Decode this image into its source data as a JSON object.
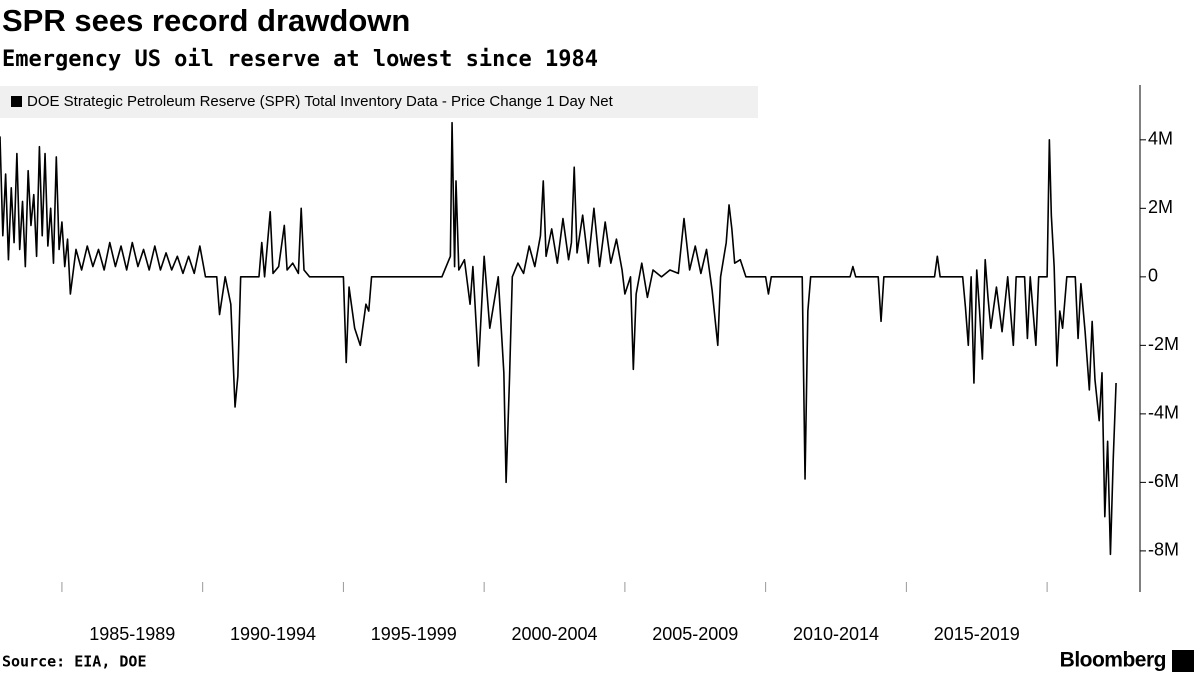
{
  "chart_data": {
    "type": "line",
    "title": "SPR sees record drawdown",
    "subtitle": "Emergency US oil reserve at lowest since 1984",
    "source": "Source: EIA, DOE",
    "brand": "Bloomberg",
    "xlim": [
      1982.8,
      2023.3
    ],
    "ylim": [
      -9.2,
      5.6
    ],
    "xticks": [
      1985,
      1990,
      1995,
      2000,
      2005,
      2010,
      2015,
      2020
    ],
    "x_period_labels": [
      {
        "value": 1987.5,
        "label": "1985-1989"
      },
      {
        "value": 1992.5,
        "label": "1990-1994"
      },
      {
        "value": 1997.5,
        "label": "1995-1999"
      },
      {
        "value": 2002.5,
        "label": "2000-2004"
      },
      {
        "value": 2007.5,
        "label": "2005-2009"
      },
      {
        "value": 2012.5,
        "label": "2010-2014"
      },
      {
        "value": 2017.5,
        "label": "2015-2019"
      }
    ],
    "yticks": [
      {
        "value": 4,
        "label": "4M"
      },
      {
        "value": 2,
        "label": "2M"
      },
      0,
      {
        "value": -2,
        "label": "-2M"
      },
      {
        "value": -4,
        "label": "-4M"
      },
      {
        "value": -6,
        "label": "-6M"
      },
      {
        "value": -8,
        "label": "-8M"
      }
    ],
    "grid": false,
    "x": [
      1982.8,
      1982.9,
      1983.0,
      1983.1,
      1983.2,
      1983.3,
      1983.4,
      1983.5,
      1983.6,
      1983.7,
      1983.8,
      1983.9,
      1984.0,
      1984.1,
      1984.2,
      1984.3,
      1984.4,
      1984.5,
      1984.6,
      1984.7,
      1984.8,
      1984.9,
      1985.0,
      1985.1,
      1985.2,
      1985.3,
      1985.5,
      1985.7,
      1985.9,
      1986.1,
      1986.3,
      1986.5,
      1986.7,
      1986.9,
      1987.1,
      1987.3,
      1987.5,
      1987.7,
      1987.9,
      1988.1,
      1988.3,
      1988.5,
      1988.7,
      1988.9,
      1989.1,
      1989.3,
      1989.5,
      1989.7,
      1989.9,
      1990.1,
      1990.5,
      1990.6,
      1990.8,
      1991.0,
      1991.15,
      1991.25,
      1991.35,
      1992.0,
      1992.1,
      1992.2,
      1992.4,
      1992.5,
      1992.7,
      1992.9,
      1993.0,
      1993.2,
      1993.4,
      1993.5,
      1993.6,
      1993.8,
      1995.0,
      1995.1,
      1995.2,
      1995.4,
      1995.6,
      1995.8,
      1995.9,
      1996.0,
      1998.5,
      1998.8,
      1998.86,
      1998.95,
      1999.0,
      1999.1,
      1999.3,
      1999.5,
      1999.6,
      1999.8,
      2000.0,
      2000.2,
      2000.5,
      2000.7,
      2000.78,
      2000.9,
      2001.0,
      2001.2,
      2001.4,
      2001.6,
      2001.8,
      2002.0,
      2002.1,
      2002.2,
      2002.4,
      2002.6,
      2002.8,
      2003.0,
      2003.1,
      2003.2,
      2003.3,
      2003.5,
      2003.7,
      2003.9,
      2004.1,
      2004.3,
      2004.5,
      2004.7,
      2004.9,
      2005.0,
      2005.2,
      2005.3,
      2005.4,
      2005.6,
      2005.8,
      2006.0,
      2006.3,
      2006.6,
      2006.9,
      2007.1,
      2007.3,
      2007.5,
      2007.7,
      2007.9,
      2008.1,
      2008.3,
      2008.4,
      2008.6,
      2008.7,
      2008.8,
      2008.9,
      2009.1,
      2009.3,
      2010.0,
      2010.1,
      2010.2,
      2011.3,
      2011.4,
      2011.5,
      2011.6,
      2013.0,
      2013.1,
      2013.2,
      2014.0,
      2014.1,
      2014.2,
      2016.0,
      2016.1,
      2016.2,
      2017.0,
      2017.1,
      2017.2,
      2017.3,
      2017.4,
      2017.5,
      2017.6,
      2017.7,
      2017.8,
      2017.9,
      2018.0,
      2018.2,
      2018.4,
      2018.6,
      2018.8,
      2018.9,
      2019.2,
      2019.3,
      2019.4,
      2019.6,
      2019.7,
      2020.0,
      2020.08,
      2020.15,
      2020.25,
      2020.35,
      2020.45,
      2020.55,
      2020.7,
      2021.0,
      2021.1,
      2021.2,
      2021.35,
      2021.5,
      2021.6,
      2021.7,
      2021.85,
      2021.95,
      2022.05,
      2022.15,
      2022.25,
      2022.35,
      2022.45
    ],
    "series": [
      {
        "name": "DOE Strategic Petroleum Reserve (SPR) Total Inventory Data - Price Change 1 Day Net",
        "color": "#000000",
        "values": [
          4.1,
          1.2,
          3.0,
          0.5,
          2.6,
          1.0,
          3.6,
          0.8,
          2.2,
          0.3,
          3.1,
          1.5,
          2.4,
          0.6,
          3.8,
          1.2,
          3.6,
          0.9,
          2.0,
          0.4,
          3.5,
          0.8,
          1.6,
          0.3,
          1.1,
          -0.5,
          0.8,
          0.2,
          0.9,
          0.3,
          0.8,
          0.2,
          1.0,
          0.3,
          0.9,
          0.2,
          1.0,
          0.3,
          0.8,
          0.2,
          0.9,
          0.2,
          0.7,
          0.2,
          0.6,
          0.1,
          0.6,
          0.1,
          0.9,
          0,
          0,
          -1.1,
          0,
          -0.8,
          -3.8,
          -2.9,
          0,
          0,
          1.0,
          0,
          1.9,
          0.1,
          0.3,
          1.5,
          0.2,
          0.4,
          0.1,
          2.0,
          0.2,
          0,
          0,
          -2.5,
          -0.3,
          -1.5,
          -2.0,
          -0.8,
          -1.0,
          0,
          0,
          0.6,
          4.5,
          0.3,
          2.8,
          0.2,
          0.5,
          -0.8,
          0.3,
          -2.6,
          0.6,
          -1.5,
          0,
          -2.8,
          -6.0,
          -3.0,
          0,
          0.4,
          0.1,
          0.9,
          0.3,
          1.2,
          2.8,
          0.6,
          1.4,
          0.4,
          1.7,
          0.5,
          1.0,
          3.2,
          0.7,
          1.8,
          0.4,
          2.0,
          0.3,
          1.6,
          0.4,
          1.1,
          0.2,
          -0.5,
          0,
          -2.7,
          -0.5,
          0.4,
          -0.6,
          0.2,
          0,
          0.2,
          0.1,
          1.7,
          0.2,
          0.9,
          0.1,
          0.8,
          -0.4,
          -2.0,
          0,
          1.0,
          2.1,
          1.4,
          0.4,
          0.5,
          0,
          0,
          -0.5,
          0,
          0,
          -5.9,
          -1.0,
          0,
          0,
          0.3,
          0,
          0,
          -1.3,
          0,
          0,
          0.6,
          0,
          0,
          -0.9,
          -2.0,
          0,
          -3.1,
          0.2,
          -1.0,
          -2.4,
          0.5,
          -0.6,
          -1.5,
          -0.3,
          -1.6,
          0,
          -2.0,
          0,
          0,
          -1.8,
          0,
          -2.0,
          0,
          0,
          4.0,
          1.8,
          0.3,
          -2.6,
          -1.0,
          -1.5,
          0,
          0,
          -1.8,
          -0.2,
          -1.6,
          -3.3,
          -1.3,
          -3.0,
          -4.2,
          -2.8,
          -7.0,
          -4.8,
          -8.1,
          -5.3,
          -3.1
        ]
      }
    ]
  }
}
